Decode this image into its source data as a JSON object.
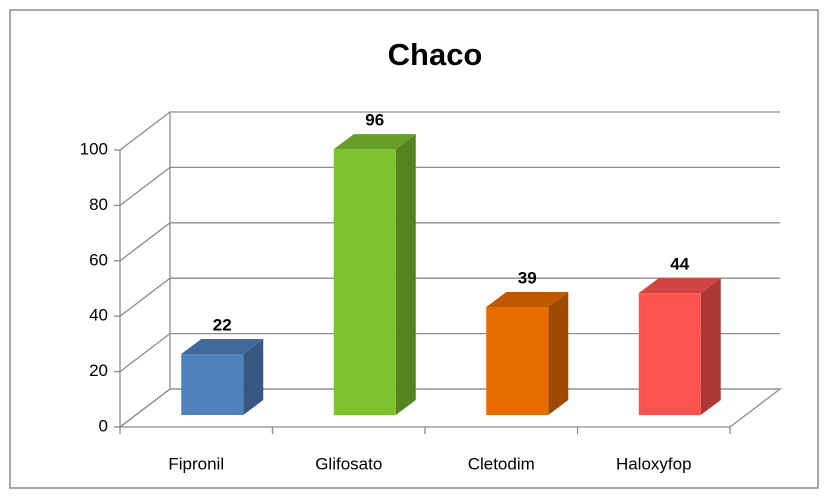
{
  "chart_data": {
    "type": "bar",
    "title": "Chaco",
    "categories": [
      "Fipronil",
      "Glifosato",
      "Cletodim",
      "Haloxyfop"
    ],
    "values": [
      22,
      96,
      39,
      44
    ],
    "colors": [
      "#4f81bd",
      "#7dc12f",
      "#e96c00",
      "#ff5350"
    ],
    "ylim": [
      0,
      100
    ],
    "yticks": [
      0,
      20,
      40,
      60,
      80,
      100
    ],
    "grid": true
  }
}
